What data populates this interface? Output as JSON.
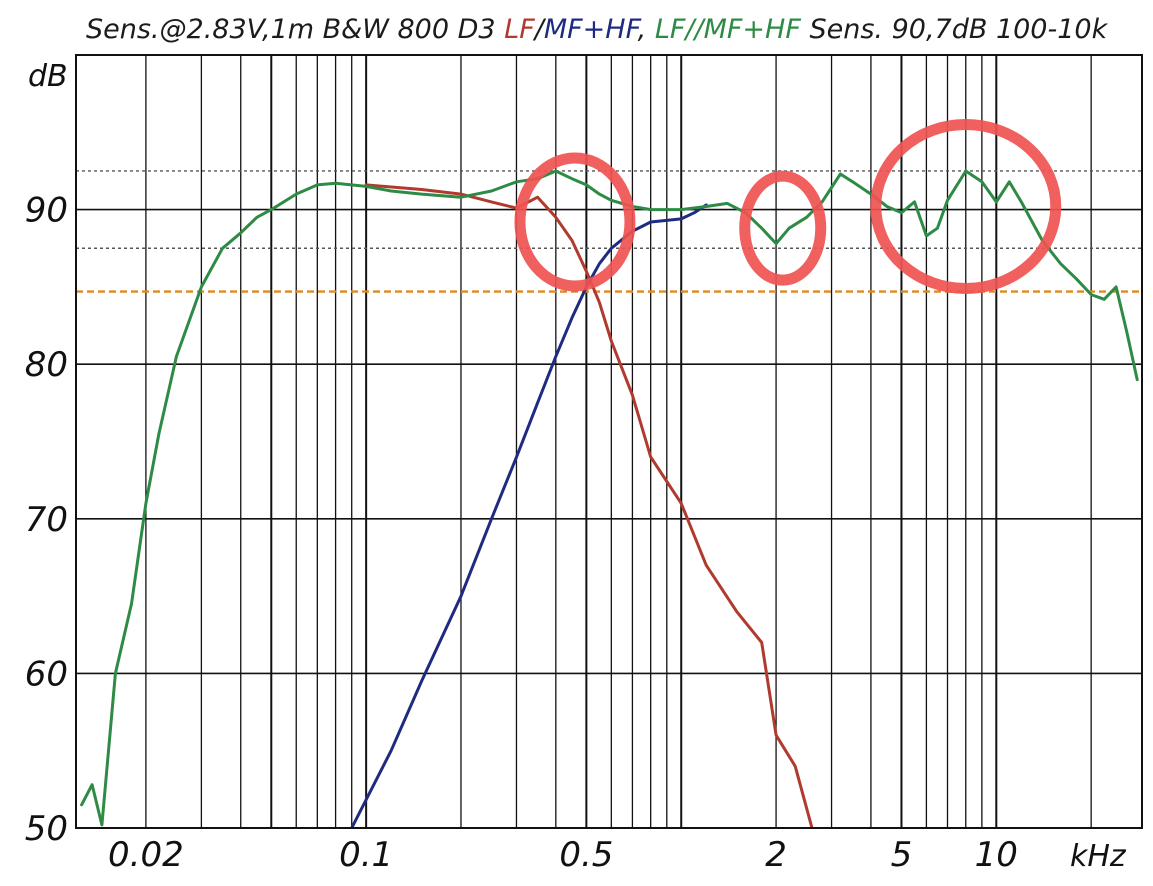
{
  "chart_data": {
    "type": "line",
    "title_parts": [
      {
        "text": "Sens.@2.83V,1m  B&W 800 D3 ",
        "color": "#1c1c1c"
      },
      {
        "text": "LF",
        "color": "#b03a2e"
      },
      {
        "text": "/",
        "color": "#1c1c1c"
      },
      {
        "text": "MF+HF",
        "color": "#1f2b80"
      },
      {
        "text": ",  ",
        "color": "#1c1c1c"
      },
      {
        "text": "LF//MF+HF",
        "color": "#2e8b45"
      },
      {
        "text": " Sens. 90,7dB  100-10k",
        "color": "#1c1c1c"
      }
    ],
    "ylabel": "dB",
    "xlabel": "kHz",
    "x_scale": "log",
    "xlim": [
      0.012,
      29
    ],
    "ylim": [
      50,
      100
    ],
    "grid": true,
    "y_ticks": [
      {
        "value": 50,
        "label": "50"
      },
      {
        "value": 60,
        "label": "60"
      },
      {
        "value": 70,
        "label": "70"
      },
      {
        "value": 80,
        "label": "80"
      },
      {
        "value": 90,
        "label": "90"
      }
    ],
    "x_ticks": [
      {
        "value": 0.02,
        "label": "0.02"
      },
      {
        "value": 0.1,
        "label": "0.1"
      },
      {
        "value": 0.5,
        "label": "0.5"
      },
      {
        "value": 2,
        "label": "2"
      },
      {
        "value": 5,
        "label": "5"
      },
      {
        "value": 10,
        "label": "10"
      }
    ],
    "reference_lines": [
      {
        "y": 92.5,
        "style": "dotted",
        "color": "#555555"
      },
      {
        "y": 87.5,
        "style": "dotted",
        "color": "#555555"
      },
      {
        "y": 84.7,
        "style": "dashed",
        "color": "#e08a1e"
      }
    ],
    "series": [
      {
        "color": "#b03a2e",
        "x": [
          0.1,
          0.15,
          0.2,
          0.25,
          0.3,
          0.35,
          0.4,
          0.45,
          0.5,
          0.55,
          0.6,
          0.7,
          0.8,
          1.0,
          1.2,
          1.5,
          1.8,
          2.0,
          2.3,
          2.6
        ],
        "y": [
          91.6,
          91.3,
          91.0,
          90.5,
          90.1,
          90.8,
          89.5,
          88.0,
          86.0,
          84.0,
          81.5,
          78.0,
          74.0,
          71.0,
          67.0,
          64.0,
          62.0,
          56.0,
          54.0,
          50.0
        ]
      },
      {
        "color": "#1f2b80",
        "x": [
          0.09,
          0.12,
          0.15,
          0.2,
          0.25,
          0.3,
          0.35,
          0.4,
          0.45,
          0.5,
          0.55,
          0.6,
          0.7,
          0.8,
          1.0,
          1.1,
          1.2
        ],
        "y": [
          50.0,
          55.0,
          59.5,
          65.0,
          70.0,
          74.0,
          77.5,
          80.5,
          83.0,
          85.0,
          86.5,
          87.5,
          88.6,
          89.2,
          89.4,
          89.8,
          90.3
        ]
      },
      {
        "color": "#2e8b45",
        "x": [
          0.0125,
          0.0135,
          0.0145,
          0.016,
          0.018,
          0.02,
          0.022,
          0.025,
          0.03,
          0.035,
          0.04,
          0.045,
          0.05,
          0.06,
          0.07,
          0.08,
          0.1,
          0.12,
          0.15,
          0.2,
          0.25,
          0.3,
          0.35,
          0.4,
          0.45,
          0.5,
          0.55,
          0.6,
          0.7,
          0.8,
          1.0,
          1.2,
          1.4,
          1.6,
          1.8,
          2.0,
          2.2,
          2.5,
          2.8,
          3.2,
          3.5,
          4.0,
          4.5,
          5.0,
          5.5,
          6.0,
          6.5,
          7.0,
          8.0,
          9.0,
          10.0,
          11.0,
          12.0,
          14.0,
          16.0,
          18.0,
          20.0,
          22.0,
          24.0,
          26.0,
          28.0
        ],
        "y": [
          51.5,
          52.8,
          50.2,
          60.0,
          64.5,
          71.0,
          75.5,
          80.5,
          85.0,
          87.5,
          88.5,
          89.5,
          90.0,
          91.0,
          91.6,
          91.7,
          91.5,
          91.2,
          91.0,
          90.8,
          91.2,
          91.8,
          92.0,
          92.5,
          92.0,
          91.6,
          91.0,
          90.6,
          90.2,
          90.0,
          90.0,
          90.2,
          90.4,
          89.8,
          88.8,
          87.8,
          88.8,
          89.5,
          90.5,
          92.3,
          91.8,
          91.0,
          90.2,
          89.8,
          90.5,
          88.3,
          88.8,
          90.6,
          92.5,
          91.8,
          90.5,
          91.8,
          90.5,
          88.0,
          86.5,
          85.5,
          84.5,
          84.2,
          85.0,
          82.0,
          79.0
        ]
      }
    ]
  },
  "annotations": [
    {
      "shape": "ellipse",
      "color": "#ef5350",
      "cx": 0.46,
      "cy": 89.2,
      "note": "highlight"
    },
    {
      "shape": "ellipse",
      "color": "#ef5350",
      "cx": 2.1,
      "cy": 88.8,
      "note": "highlight"
    },
    {
      "shape": "ellipse",
      "color": "#ef5350",
      "cx": 8.0,
      "cy": 90.2,
      "note": "highlight"
    }
  ]
}
